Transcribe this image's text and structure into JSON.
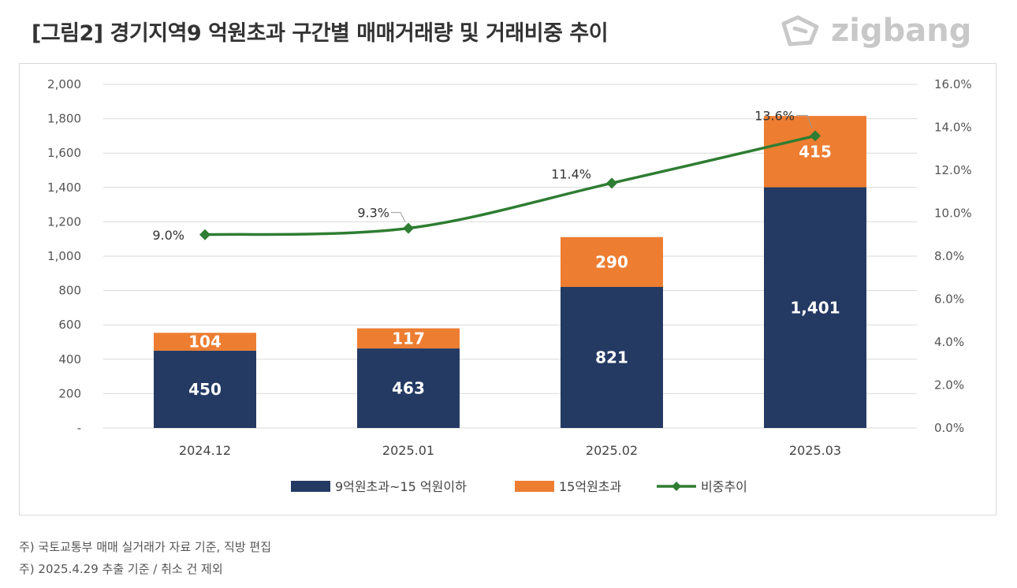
{
  "title": "[그림2] 경기지역9 억원초과 구간별 매매거래량 및 거래비중 추이",
  "logo": {
    "text": "zigbang",
    "icon": "zigbang-logo-icon"
  },
  "notes": [
    "주) 국토교통부 매매 실거래가 자료 기준, 직방 편집",
    "주) 2025.4.29 추출 기준 / 취소 건 제외"
  ],
  "colors": {
    "navy": "#243a63",
    "orange": "#ed7d31",
    "green": "#2e7d32"
  },
  "chart_data": {
    "type": "bar",
    "stacked": true,
    "title": "",
    "xlabel": "",
    "ylabel": "",
    "categories": [
      "2024.12",
      "2025.01",
      "2025.02",
      "2025.03"
    ],
    "ylim": [
      0,
      2000
    ],
    "y_ticks": [
      "-",
      "200",
      "400",
      "600",
      "800",
      "1,000",
      "1,200",
      "1,400",
      "1,600",
      "1,800",
      "2,000"
    ],
    "y2lim": [
      0,
      16
    ],
    "y2_ticks": [
      "0.0%",
      "2.0%",
      "4.0%",
      "6.0%",
      "8.0%",
      "10.0%",
      "12.0%",
      "14.0%",
      "16.0%"
    ],
    "grid": true,
    "legend_position": "bottom",
    "series": [
      {
        "name": "9억원초과~15 억원이하",
        "type": "bar",
        "values": [
          450,
          463,
          821,
          1401
        ],
        "labels": [
          "450",
          "463",
          "821",
          "1,401"
        ],
        "color": "#243a63"
      },
      {
        "name": "15억원초과",
        "type": "bar",
        "values": [
          104,
          117,
          290,
          415
        ],
        "labels": [
          "104",
          "117",
          "290",
          "415"
        ],
        "color": "#ed7d31"
      },
      {
        "name": "비중추이",
        "type": "line",
        "axis": "right",
        "values": [
          9.0,
          9.3,
          11.4,
          13.6
        ],
        "labels": [
          "9.0%",
          "9.3%",
          "11.4%",
          "13.6%"
        ],
        "color": "#2e7d32"
      }
    ]
  }
}
